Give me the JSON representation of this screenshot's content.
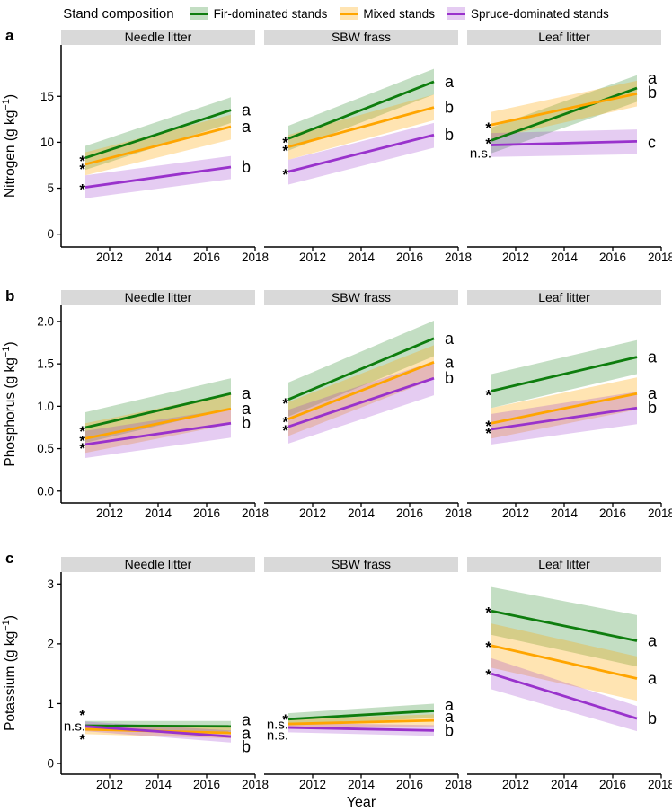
{
  "figure": {
    "legend": {
      "title": "Stand composition",
      "items": [
        {
          "key": "fir",
          "label": "Fir-dominated stands",
          "color": "#0e7d0e",
          "band": "rgba(14,125,14,0.25)"
        },
        {
          "key": "mixed",
          "label": "Mixed stands",
          "color": "#ffa500",
          "band": "rgba(255,165,0,0.3)"
        },
        {
          "key": "spruce",
          "label": "Spruce-dominated stands",
          "color": "#9932cc",
          "band": "rgba(153,50,204,0.25)"
        }
      ]
    },
    "tags": {
      "a": "a",
      "b": "b",
      "c": "c"
    }
  },
  "chart_data": {
    "type": "line",
    "x_axis": {
      "label": "Year",
      "tick_labels": [
        "2012",
        "2014",
        "2016",
        "2018"
      ],
      "tick_vals": [
        2012,
        2014,
        2016,
        2018
      ],
      "lim": [
        2010,
        2018
      ],
      "data_years": [
        2011,
        2017
      ]
    },
    "panel_columns": [
      "Needle litter",
      "SBW frass",
      "Leaf litter"
    ],
    "rows": [
      {
        "tag": "a",
        "ylabel": "Nitrogen (g kg⁻¹)",
        "yticks": [
          "0",
          "5",
          "10",
          "15"
        ],
        "ytick_vals": [
          0,
          5,
          10,
          15
        ],
        "ylim": [
          -1.4,
          20.6
        ],
        "panels": [
          {
            "title": "Needle litter",
            "series": [
              {
                "key": "fir",
                "start": 8.3,
                "end": 13.5,
                "ci_start": [
                  7.0,
                  9.6
                ],
                "ci_end": [
                  12.1,
                  14.9
                ],
                "letter": "a",
                "letter_y": 13.5
              },
              {
                "key": "mixed",
                "start": 7.6,
                "end": 11.7,
                "ci_start": [
                  6.4,
                  8.9
                ],
                "ci_end": [
                  10.3,
                  13.0
                ],
                "letter": "a",
                "letter_y": 11.7
              },
              {
                "key": "spruce",
                "start": 5.1,
                "end": 7.3,
                "ci_start": [
                  3.9,
                  6.4
                ],
                "ci_end": [
                  6.0,
                  8.5
                ],
                "letter": "b",
                "letter_y": 7.3
              }
            ],
            "annotations": [
              {
                "key": "fir",
                "text": "*",
                "y": 8.3
              },
              {
                "key": "mixed",
                "text": "*",
                "y": 7.4
              },
              {
                "key": "spruce",
                "text": "*",
                "y": 5.2
              }
            ]
          },
          {
            "title": "SBW frass",
            "series": [
              {
                "key": "fir",
                "start": 10.4,
                "end": 16.6,
                "ci_start": [
                  9.1,
                  11.8
                ],
                "ci_end": [
                  15.2,
                  18.0
                ],
                "letter": "a",
                "letter_y": 16.6
              },
              {
                "key": "mixed",
                "start": 9.5,
                "end": 13.8,
                "ci_start": [
                  8.1,
                  10.8
                ],
                "ci_end": [
                  12.4,
                  15.2
                ],
                "letter": "b",
                "letter_y": 13.8
              },
              {
                "key": "spruce",
                "start": 6.8,
                "end": 10.8,
                "ci_start": [
                  5.4,
                  8.1
                ],
                "ci_end": [
                  9.4,
                  12.1
                ],
                "letter": "b",
                "letter_y": 10.8
              }
            ],
            "annotations": [
              {
                "key": "fir",
                "text": "*",
                "y": 10.3
              },
              {
                "key": "mixed",
                "text": "*",
                "y": 9.4
              },
              {
                "key": "spruce",
                "text": "*",
                "y": 6.8
              }
            ]
          },
          {
            "title": "Leaf litter",
            "series": [
              {
                "key": "fir",
                "start": 10.2,
                "end": 15.9,
                "ci_start": [
                  8.8,
                  11.6
                ],
                "ci_end": [
                  14.4,
                  17.3
                ],
                "letter": "a",
                "letter_y": 17.0
              },
              {
                "key": "mixed",
                "start": 11.9,
                "end": 15.3,
                "ci_start": [
                  10.4,
                  13.3
                ],
                "ci_end": [
                  13.9,
                  16.7
                ],
                "letter": "b",
                "letter_y": 15.4
              },
              {
                "key": "spruce",
                "start": 9.7,
                "end": 10.1,
                "ci_start": [
                  8.4,
                  11.0
                ],
                "ci_end": [
                  8.7,
                  11.4
                ],
                "letter": "c",
                "letter_y": 10.0
              }
            ],
            "annotations": [
              {
                "key": "mixed",
                "text": "*",
                "y": 11.9
              },
              {
                "key": "fir",
                "text": "*",
                "y": 10.2
              },
              {
                "key": "spruce",
                "text": "n.s.",
                "y": 8.8
              }
            ]
          }
        ]
      },
      {
        "tag": "b",
        "ylabel": "Phosphorus (g kg⁻¹)",
        "yticks": [
          "0.0",
          "0.5",
          "1.0",
          "1.5",
          "2.0"
        ],
        "ytick_vals": [
          0.0,
          0.5,
          1.0,
          1.5,
          2.0
        ],
        "ylim": [
          -0.14,
          2.19
        ],
        "panels": [
          {
            "title": "Needle litter",
            "series": [
              {
                "key": "fir",
                "start": 0.75,
                "end": 1.15,
                "ci_start": [
                  0.57,
                  0.93
                ],
                "ci_end": [
                  0.97,
                  1.33
                ],
                "letter": "a",
                "letter_y": 1.15
              },
              {
                "key": "mixed",
                "start": 0.62,
                "end": 0.97,
                "ci_start": [
                  0.45,
                  0.8
                ],
                "ci_end": [
                  0.79,
                  1.15
                ],
                "letter": "a",
                "letter_y": 0.97
              },
              {
                "key": "spruce",
                "start": 0.55,
                "end": 0.8,
                "ci_start": [
                  0.39,
                  0.71
                ],
                "ci_end": [
                  0.63,
                  0.97
                ],
                "letter": "b",
                "letter_y": 0.8
              }
            ],
            "annotations": [
              {
                "key": "fir",
                "text": "*",
                "y": 0.74
              },
              {
                "key": "mixed",
                "text": "*",
                "y": 0.63
              },
              {
                "key": "spruce",
                "text": "*",
                "y": 0.54
              }
            ]
          },
          {
            "title": "SBW frass",
            "series": [
              {
                "key": "fir",
                "start": 1.08,
                "end": 1.8,
                "ci_start": [
                  0.88,
                  1.28
                ],
                "ci_end": [
                  1.59,
                  2.01
                ],
                "letter": "a",
                "letter_y": 1.8
              },
              {
                "key": "mixed",
                "start": 0.85,
                "end": 1.52,
                "ci_start": [
                  0.65,
                  1.05
                ],
                "ci_end": [
                  1.32,
                  1.72
                ],
                "letter": "a",
                "letter_y": 1.52
              },
              {
                "key": "spruce",
                "start": 0.76,
                "end": 1.33,
                "ci_start": [
                  0.56,
                  0.96
                ],
                "ci_end": [
                  1.13,
                  1.53
                ],
                "letter": "b",
                "letter_y": 1.33
              }
            ],
            "annotations": [
              {
                "key": "fir",
                "text": "*",
                "y": 1.07
              },
              {
                "key": "mixed",
                "text": "*",
                "y": 0.85
              },
              {
                "key": "spruce",
                "text": "*",
                "y": 0.75
              }
            ]
          },
          {
            "title": "Leaf litter",
            "series": [
              {
                "key": "fir",
                "start": 1.18,
                "end": 1.58,
                "ci_start": [
                  0.98,
                  1.38
                ],
                "ci_end": [
                  1.38,
                  1.78
                ],
                "letter": "a",
                "letter_y": 1.58
              },
              {
                "key": "mixed",
                "start": 0.8,
                "end": 1.15,
                "ci_start": [
                  0.62,
                  0.98
                ],
                "ci_end": [
                  0.96,
                  1.34
                ],
                "letter": "a",
                "letter_y": 1.15
              },
              {
                "key": "spruce",
                "start": 0.73,
                "end": 0.98,
                "ci_start": [
                  0.55,
                  0.91
                ],
                "ci_end": [
                  0.79,
                  1.17
                ],
                "letter": "b",
                "letter_y": 0.98
              }
            ],
            "annotations": [
              {
                "key": "fir",
                "text": "*",
                "y": 1.17
              },
              {
                "key": "mixed",
                "text": "*",
                "y": 0.8
              },
              {
                "key": "spruce",
                "text": "*",
                "y": 0.72
              }
            ]
          }
        ]
      },
      {
        "tag": "c",
        "ylabel": "Potassium (g kg⁻¹)",
        "yticks": [
          "0",
          "1",
          "2",
          "3"
        ],
        "ytick_vals": [
          0,
          1,
          2,
          3
        ],
        "ylim": [
          -0.18,
          3.2
        ],
        "panels": [
          {
            "title": "Needle litter",
            "series": [
              {
                "key": "fir",
                "start": 0.63,
                "end": 0.62,
                "ci_start": [
                  0.55,
                  0.71
                ],
                "ci_end": [
                  0.53,
                  0.71
                ],
                "letter": "a",
                "letter_y": 0.73
              },
              {
                "key": "mixed",
                "start": 0.57,
                "end": 0.51,
                "ci_start": [
                  0.49,
                  0.65
                ],
                "ci_end": [
                  0.42,
                  0.6
                ],
                "letter": "a",
                "letter_y": 0.5
              },
              {
                "key": "spruce",
                "start": 0.62,
                "end": 0.45,
                "ci_start": [
                  0.54,
                  0.7
                ],
                "ci_end": [
                  0.35,
                  0.55
                ],
                "letter": "b",
                "letter_y": 0.28
              }
            ],
            "annotations": [
              {
                "key": "spruce",
                "text": "*",
                "y": 0.86
              },
              {
                "key": "fir",
                "text": "n.s.",
                "y": 0.62
              },
              {
                "key": "mixed",
                "text": "*",
                "y": 0.45
              }
            ]
          },
          {
            "title": "SBW frass",
            "series": [
              {
                "key": "fir",
                "start": 0.74,
                "end": 0.88,
                "ci_start": [
                  0.64,
                  0.84
                ],
                "ci_end": [
                  0.76,
                  1.0
                ],
                "letter": "a",
                "letter_y": 0.98
              },
              {
                "key": "mixed",
                "start": 0.66,
                "end": 0.72,
                "ci_start": [
                  0.58,
                  0.74
                ],
                "ci_end": [
                  0.62,
                  0.82
                ],
                "letter": "a",
                "letter_y": 0.78
              },
              {
                "key": "spruce",
                "start": 0.6,
                "end": 0.55,
                "ci_start": [
                  0.52,
                  0.68
                ],
                "ci_end": [
                  0.46,
                  0.64
                ],
                "letter": "b",
                "letter_y": 0.55
              }
            ],
            "annotations": [
              {
                "key": "fir",
                "text": "*",
                "y": 0.78
              },
              {
                "key": "mixed",
                "text": "n.s.",
                "y": 0.65
              },
              {
                "key": "spruce",
                "text": "n.s.",
                "y": 0.47
              }
            ]
          },
          {
            "title": "Leaf litter",
            "series": [
              {
                "key": "fir",
                "start": 2.55,
                "end": 2.05,
                "ci_start": [
                  2.15,
                  2.95
                ],
                "ci_end": [
                  1.62,
                  2.48
                ],
                "letter": "a",
                "letter_y": 2.05
              },
              {
                "key": "mixed",
                "start": 1.97,
                "end": 1.42,
                "ci_start": [
                  1.6,
                  2.34
                ],
                "ci_end": [
                  1.05,
                  1.79
                ],
                "letter": "a",
                "letter_y": 1.42
              },
              {
                "key": "spruce",
                "start": 1.5,
                "end": 0.75,
                "ci_start": [
                  1.24,
                  1.76
                ],
                "ci_end": [
                  0.54,
                  0.96
                ],
                "letter": "b",
                "letter_y": 0.75
              }
            ],
            "annotations": [
              {
                "key": "fir",
                "text": "*",
                "y": 2.58
              },
              {
                "key": "mixed",
                "text": "*",
                "y": 2.0
              },
              {
                "key": "spruce",
                "text": "*",
                "y": 1.53
              }
            ]
          }
        ]
      }
    ]
  }
}
